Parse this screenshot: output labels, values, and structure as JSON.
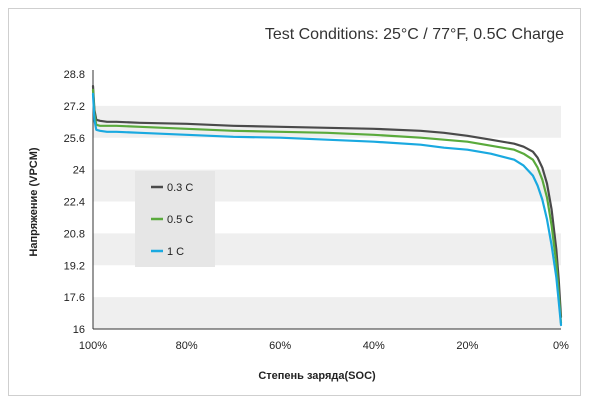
{
  "chart_data": {
    "type": "line",
    "title": "Test Conditions: 25°C / 77°F, 0.5C Charge",
    "xlabel": "Степень заряда(SOC)",
    "ylabel": "Напряжение (VPCM)",
    "x_ticks": [
      "100%",
      "80%",
      "60%",
      "40%",
      "20%",
      "0%"
    ],
    "x_tick_values": [
      100,
      80,
      60,
      40,
      20,
      0
    ],
    "xlim": [
      100,
      0
    ],
    "y_ticks": [
      "16",
      "17.6",
      "19.2",
      "20.8",
      "22.4",
      "24",
      "25.6",
      "27.2",
      "28.8"
    ],
    "y_tick_values": [
      16,
      17.6,
      19.2,
      20.8,
      22.4,
      24,
      25.6,
      27.2,
      28.8
    ],
    "ylim": [
      16,
      28.8
    ],
    "grid": "alternating horizontal bands",
    "legend_position": "left",
    "series": [
      {
        "name": "0.3 C",
        "color": "#4a4a4a",
        "x": [
          100,
          99.7,
          99.3,
          98.5,
          97,
          95,
          90,
          80,
          70,
          60,
          50,
          40,
          30,
          25,
          20,
          15,
          10,
          8,
          6,
          5,
          4,
          3,
          2,
          1,
          0.5,
          0
        ],
        "y": [
          28.2,
          27.0,
          26.5,
          26.45,
          26.4,
          26.4,
          26.35,
          26.3,
          26.2,
          26.15,
          26.1,
          26.05,
          25.95,
          25.85,
          25.7,
          25.5,
          25.3,
          25.15,
          24.9,
          24.6,
          24.1,
          23.3,
          22.0,
          20.0,
          18.5,
          16.6
        ]
      },
      {
        "name": "0.5 C",
        "color": "#5aaa3c",
        "x": [
          100,
          99.7,
          99.3,
          98.5,
          97,
          95,
          90,
          80,
          70,
          60,
          50,
          40,
          30,
          25,
          20,
          15,
          10,
          8,
          6,
          5,
          4,
          3,
          2,
          1,
          0.5,
          0
        ],
        "y": [
          28.0,
          26.8,
          26.25,
          26.2,
          26.2,
          26.2,
          26.15,
          26.05,
          25.95,
          25.9,
          25.85,
          25.75,
          25.6,
          25.5,
          25.4,
          25.2,
          25.0,
          24.8,
          24.5,
          24.1,
          23.5,
          22.6,
          21.2,
          19.3,
          17.8,
          16.3
        ]
      },
      {
        "name": "1 C",
        "color": "#1aa9e0",
        "x": [
          100,
          99.7,
          99.3,
          98.5,
          97,
          95,
          90,
          80,
          70,
          60,
          50,
          40,
          30,
          25,
          20,
          15,
          10,
          8,
          6,
          5,
          4,
          3,
          2,
          1,
          0.5,
          0
        ],
        "y": [
          27.8,
          26.5,
          26.0,
          25.95,
          25.9,
          25.9,
          25.85,
          25.75,
          25.65,
          25.6,
          25.5,
          25.4,
          25.25,
          25.1,
          25.0,
          24.8,
          24.5,
          24.2,
          23.7,
          23.2,
          22.5,
          21.5,
          20.2,
          18.6,
          17.4,
          16.2
        ]
      }
    ]
  }
}
